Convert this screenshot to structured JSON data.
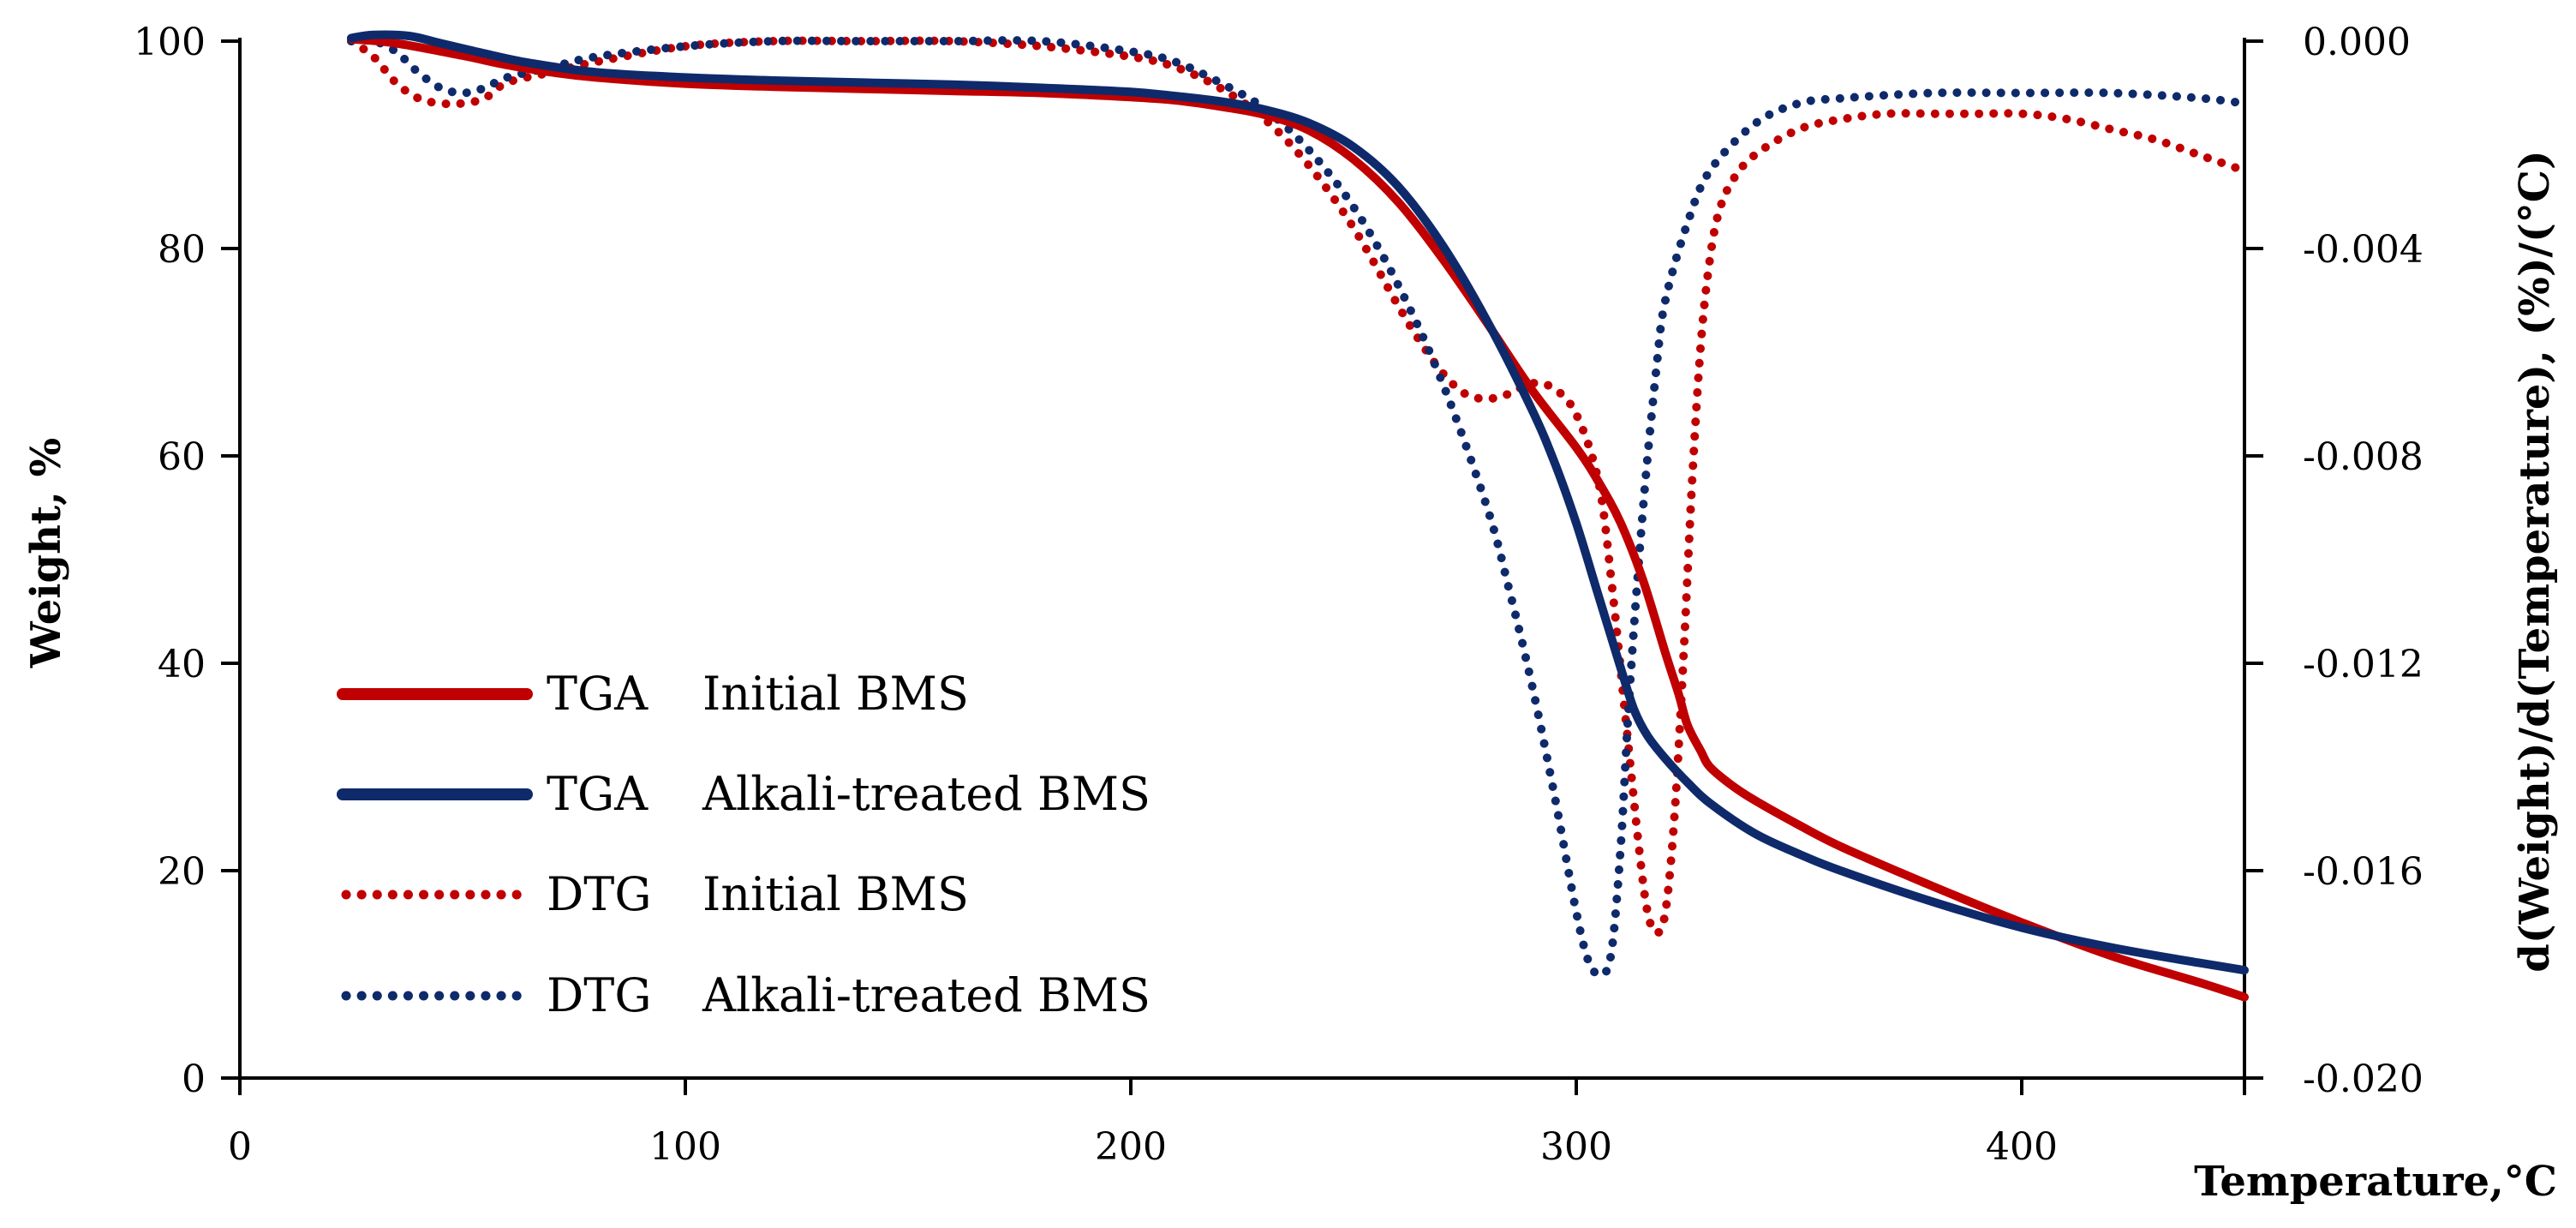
{
  "chart_data": {
    "type": "line",
    "xlabel": "Temperature,°C",
    "ylabel_left": "Weight, %",
    "ylabel_right": "d(Weight)/d(Temperature), (%)/(°C)",
    "xlim": [
      0,
      450
    ],
    "ylim_left": [
      0,
      100
    ],
    "ylim_right": [
      -0.02,
      0.0
    ],
    "x_ticks": [
      "0",
      "100",
      "200",
      "300",
      "400"
    ],
    "y_left_ticks": [
      "0",
      "20",
      "40",
      "60",
      "80",
      "100"
    ],
    "y_right_ticks": [
      "-0.020",
      "-0.016",
      "-0.012",
      "-0.008",
      "-0.004",
      "0.000"
    ],
    "grid": false,
    "legend_position": "lower-left",
    "colors": {
      "initial": "#c00000",
      "alkali": "#0f2a6b"
    },
    "series": [
      {
        "name": "TGA Initial BMS",
        "legend_method": "TGA",
        "legend_sample": "Initial BMS",
        "axis": "left",
        "style": "solid",
        "color_key": "initial",
        "x": [
          25,
          35,
          50,
          60,
          70,
          80,
          100,
          120,
          140,
          160,
          180,
          200,
          210,
          220,
          230,
          240,
          250,
          260,
          270,
          280,
          290,
          300,
          305,
          310,
          315,
          320,
          323,
          325,
          328,
          330,
          335,
          340,
          350,
          360,
          380,
          400,
          420,
          440,
          450
        ],
        "y": [
          100.2,
          99.8,
          98.6,
          97.7,
          97.0,
          96.5,
          95.9,
          95.6,
          95.4,
          95.2,
          95.0,
          94.6,
          94.3,
          93.7,
          92.9,
          91.4,
          88.6,
          84.5,
          79.0,
          72.8,
          66.4,
          60.8,
          57.5,
          53.5,
          48.0,
          41.0,
          37.0,
          34.0,
          31.5,
          30.0,
          28.2,
          26.8,
          24.4,
          22.2,
          18.5,
          15.0,
          11.8,
          9.2,
          7.8
        ]
      },
      {
        "name": "TGA Alkali-treated BMS",
        "legend_method": "TGA",
        "legend_sample": "Alkali-treated BMS",
        "axis": "left",
        "style": "solid",
        "color_key": "alkali",
        "x": [
          25,
          30,
          38,
          45,
          55,
          65,
          80,
          100,
          120,
          140,
          160,
          180,
          200,
          210,
          220,
          230,
          240,
          250,
          260,
          270,
          280,
          290,
          295,
          300,
          305,
          310,
          313,
          316,
          320,
          325,
          330,
          340,
          350,
          360,
          380,
          400,
          420,
          440,
          450
        ],
        "y": [
          100.3,
          100.6,
          100.5,
          99.8,
          98.8,
          97.9,
          97.0,
          96.5,
          96.2,
          96.0,
          95.8,
          95.5,
          95.1,
          94.7,
          94.2,
          93.4,
          92.1,
          89.8,
          86.0,
          80.3,
          73.0,
          64.5,
          59.5,
          53.5,
          46.5,
          39.5,
          35.5,
          33.0,
          30.8,
          28.5,
          26.5,
          23.6,
          21.6,
          19.9,
          17.0,
          14.5,
          12.6,
          11.1,
          10.4
        ]
      },
      {
        "name": "DTG Initial BMS",
        "legend_method": "DTG",
        "legend_sample": "Initial BMS",
        "axis": "right",
        "style": "dotted",
        "color_key": "initial",
        "x": [
          25,
          30,
          35,
          40,
          45,
          50,
          55,
          60,
          70,
          80,
          100,
          120,
          140,
          160,
          180,
          200,
          210,
          220,
          230,
          240,
          250,
          260,
          265,
          270,
          275,
          280,
          285,
          290,
          295,
          300,
          305,
          308,
          311,
          314,
          316,
          318,
          320,
          322,
          324,
          326,
          328,
          330,
          332,
          335,
          340,
          350,
          360,
          370,
          380,
          390,
          400,
          410,
          420,
          430,
          440,
          450
        ],
        "y": [
          0.0,
          -0.0003,
          -0.0008,
          -0.0011,
          -0.0012,
          -0.0012,
          -0.0011,
          -0.0008,
          -0.0006,
          -0.0004,
          -0.0001,
          0.0,
          0.0,
          0.0,
          -0.0001,
          -0.0003,
          -0.0005,
          -0.0009,
          -0.0015,
          -0.0024,
          -0.0036,
          -0.0051,
          -0.0058,
          -0.0064,
          -0.0068,
          -0.0069,
          -0.0068,
          -0.0066,
          -0.0067,
          -0.0072,
          -0.0085,
          -0.0105,
          -0.013,
          -0.0155,
          -0.0168,
          -0.0172,
          -0.0168,
          -0.015,
          -0.012,
          -0.0085,
          -0.0058,
          -0.0042,
          -0.0033,
          -0.0027,
          -0.0022,
          -0.0017,
          -0.0015,
          -0.0014,
          -0.0014,
          -0.0014,
          -0.0014,
          -0.0015,
          -0.0017,
          -0.0019,
          -0.0022,
          -0.0025
        ]
      },
      {
        "name": "DTG Alkali-treated BMS",
        "legend_method": "DTG",
        "legend_sample": "Alkali-treated BMS",
        "axis": "right",
        "style": "dotted",
        "color_key": "alkali",
        "x": [
          25,
          30,
          35,
          40,
          45,
          50,
          55,
          60,
          70,
          80,
          100,
          120,
          140,
          160,
          180,
          200,
          210,
          220,
          230,
          240,
          250,
          260,
          270,
          280,
          285,
          290,
          295,
          300,
          303,
          306,
          308,
          310,
          312,
          315,
          318,
          320,
          325,
          330,
          340,
          350,
          360,
          380,
          400,
          420,
          440,
          450
        ],
        "y": [
          0.0,
          0.0,
          -0.0002,
          -0.0006,
          -0.0009,
          -0.001,
          -0.0009,
          -0.0007,
          -0.0005,
          -0.0003,
          -0.0001,
          0.0,
          0.0,
          0.0,
          0.0,
          -0.0002,
          -0.0004,
          -0.0008,
          -0.0013,
          -0.0021,
          -0.0032,
          -0.0047,
          -0.0066,
          -0.009,
          -0.0106,
          -0.0124,
          -0.0145,
          -0.0168,
          -0.0178,
          -0.018,
          -0.0175,
          -0.0155,
          -0.0125,
          -0.009,
          -0.0063,
          -0.005,
          -0.0035,
          -0.0025,
          -0.0016,
          -0.0012,
          -0.0011,
          -0.001,
          -0.001,
          -0.001,
          -0.0011,
          -0.0012
        ]
      }
    ]
  }
}
